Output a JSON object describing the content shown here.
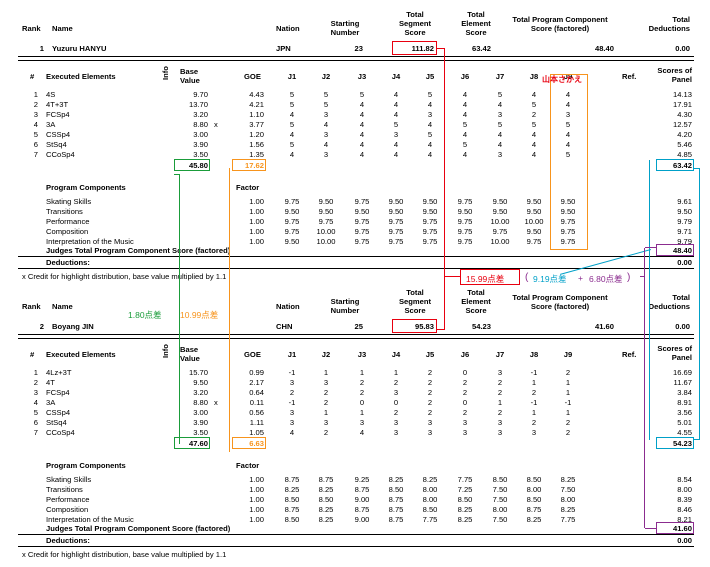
{
  "colors": {
    "red": "#e8000f",
    "green": "#1a9c3a",
    "orange": "#f7941d",
    "cyan": "#00a0c8",
    "purple": "#8b2c8f"
  },
  "headers": {
    "rank": "Rank",
    "name": "Name",
    "nation": "Nation",
    "starting_number": [
      "Starting",
      "Number"
    ],
    "total_segment_score": [
      "Total",
      "Segment",
      "Score"
    ],
    "total_element_score": [
      "Total",
      "Element",
      "Score"
    ],
    "tpcs": [
      "Total Program Component",
      "Score (factored)"
    ],
    "total_deductions": [
      "Total",
      "Deductions"
    ],
    "num": "#",
    "executed_elements": "Executed Elements",
    "info": "Info",
    "base_value": [
      "Base",
      "Value"
    ],
    "goe": "GOE",
    "judges": [
      "J1",
      "J2",
      "J3",
      "J4",
      "J5",
      "J6",
      "J7",
      "J8",
      "J9"
    ],
    "ref": "Ref.",
    "scores_of_panel": [
      "Scores of",
      "Panel"
    ],
    "program_components": "Program Components",
    "factor": "Factor",
    "judges_total": "Judges Total Program Component Score (factored)",
    "deductions": "Deductions:",
    "footnote": "x Credit for highlight distribution, base value multiplied by 1.1"
  },
  "skaters": [
    {
      "rank": "1",
      "name": "Yuzuru HANYU",
      "nation": "JPN",
      "starting_number": "23",
      "tss": "111.82",
      "tes": "63.42",
      "pcs": "48.40",
      "deductions": "0.00",
      "elements": [
        {
          "n": "1",
          "name": "4S",
          "info": "",
          "base": "9.70",
          "goe": "4.43",
          "j": [
            "5",
            "5",
            "5",
            "4",
            "5",
            "4",
            "5",
            "4",
            "4"
          ],
          "panel": "14.13"
        },
        {
          "n": "2",
          "name": "4T+3T",
          "info": "",
          "base": "13.70",
          "goe": "4.21",
          "j": [
            "5",
            "5",
            "4",
            "4",
            "4",
            "4",
            "4",
            "5",
            "4"
          ],
          "panel": "17.91"
        },
        {
          "n": "3",
          "name": "FCSp4",
          "info": "",
          "base": "3.20",
          "goe": "1.10",
          "j": [
            "4",
            "3",
            "4",
            "4",
            "3",
            "4",
            "3",
            "2",
            "3"
          ],
          "panel": "4.30"
        },
        {
          "n": "4",
          "name": "3A",
          "info": "x",
          "base": "8.80",
          "goe": "3.77",
          "j": [
            "5",
            "4",
            "4",
            "5",
            "4",
            "5",
            "5",
            "5",
            "5"
          ],
          "panel": "12.57"
        },
        {
          "n": "5",
          "name": "CSSp4",
          "info": "",
          "base": "3.00",
          "goe": "1.20",
          "j": [
            "4",
            "3",
            "4",
            "3",
            "5",
            "4",
            "4",
            "4",
            "4"
          ],
          "panel": "4.20"
        },
        {
          "n": "6",
          "name": "StSq4",
          "info": "",
          "base": "3.90",
          "goe": "1.56",
          "j": [
            "5",
            "4",
            "4",
            "4",
            "4",
            "5",
            "4",
            "4",
            "4"
          ],
          "panel": "5.46"
        },
        {
          "n": "7",
          "name": "CCoSp4",
          "info": "",
          "base": "3.50",
          "goe": "1.35",
          "j": [
            "4",
            "3",
            "4",
            "4",
            "4",
            "4",
            "3",
            "4",
            "5"
          ],
          "panel": "4.85"
        }
      ],
      "base_total": "45.80",
      "goe_total": "17.62",
      "tes_total": "63.42",
      "components": [
        {
          "name": "Skating Skills",
          "factor": "1.00",
          "j": [
            "9.75",
            "9.50",
            "9.75",
            "9.50",
            "9.50",
            "9.75",
            "9.50",
            "9.50",
            "9.50"
          ],
          "panel": "9.61"
        },
        {
          "name": "Transitions",
          "factor": "1.00",
          "j": [
            "9.50",
            "9.50",
            "9.50",
            "9.50",
            "9.50",
            "9.50",
            "9.50",
            "9.50",
            "9.50"
          ],
          "panel": "9.50"
        },
        {
          "name": "Performance",
          "factor": "1.00",
          "j": [
            "9.75",
            "9.75",
            "9.75",
            "9.75",
            "9.75",
            "9.75",
            "10.00",
            "10.00",
            "9.75"
          ],
          "panel": "9.79"
        },
        {
          "name": "Composition",
          "factor": "1.00",
          "j": [
            "9.75",
            "10.00",
            "9.75",
            "9.75",
            "9.75",
            "9.75",
            "9.75",
            "9.50",
            "9.75"
          ],
          "panel": "9.71"
        },
        {
          "name": "Interpretation of the Music",
          "factor": "1.00",
          "j": [
            "9.50",
            "10.00",
            "9.75",
            "9.75",
            "9.75",
            "9.75",
            "10.00",
            "9.75",
            "9.75"
          ],
          "panel": "9.79"
        }
      ],
      "pcs_total": "48.40",
      "ded_total": "0.00"
    },
    {
      "rank": "2",
      "name": "Boyang JIN",
      "nation": "CHN",
      "starting_number": "25",
      "tss": "95.83",
      "tes": "54.23",
      "pcs": "41.60",
      "deductions": "0.00",
      "elements": [
        {
          "n": "1",
          "name": "4Lz+3T",
          "info": "",
          "base": "15.70",
          "goe": "0.99",
          "j": [
            "-1",
            "1",
            "1",
            "1",
            "2",
            "0",
            "3",
            "-1",
            "2"
          ],
          "panel": "16.69"
        },
        {
          "n": "2",
          "name": "4T",
          "info": "",
          "base": "9.50",
          "goe": "2.17",
          "j": [
            "3",
            "3",
            "2",
            "2",
            "2",
            "2",
            "2",
            "1",
            "1"
          ],
          "panel": "11.67"
        },
        {
          "n": "3",
          "name": "FCSp4",
          "info": "",
          "base": "3.20",
          "goe": "0.64",
          "j": [
            "2",
            "2",
            "2",
            "3",
            "2",
            "2",
            "2",
            "2",
            "1"
          ],
          "panel": "3.84"
        },
        {
          "n": "4",
          "name": "3A",
          "info": "x",
          "base": "8.80",
          "goe": "0.11",
          "j": [
            "-1",
            "2",
            "0",
            "0",
            "2",
            "0",
            "1",
            "-1",
            "-1"
          ],
          "panel": "8.91"
        },
        {
          "n": "5",
          "name": "CSSp4",
          "info": "",
          "base": "3.00",
          "goe": "0.56",
          "j": [
            "3",
            "1",
            "1",
            "2",
            "2",
            "2",
            "2",
            "1",
            "1"
          ],
          "panel": "3.56"
        },
        {
          "n": "6",
          "name": "StSq4",
          "info": "",
          "base": "3.90",
          "goe": "1.11",
          "j": [
            "3",
            "3",
            "3",
            "3",
            "3",
            "3",
            "3",
            "2",
            "2"
          ],
          "panel": "5.01"
        },
        {
          "n": "7",
          "name": "CCoSp4",
          "info": "",
          "base": "3.50",
          "goe": "1.05",
          "j": [
            "4",
            "2",
            "4",
            "3",
            "3",
            "3",
            "3",
            "3",
            "2"
          ],
          "panel": "4.55"
        }
      ],
      "base_total": "47.60",
      "goe_total": "6.63",
      "tes_total": "54.23",
      "components": [
        {
          "name": "Skating Skills",
          "factor": "1.00",
          "j": [
            "8.75",
            "8.75",
            "9.25",
            "8.25",
            "8.25",
            "7.75",
            "8.50",
            "8.50",
            "8.25"
          ],
          "panel": "8.54"
        },
        {
          "name": "Transitions",
          "factor": "1.00",
          "j": [
            "8.25",
            "8.25",
            "8.75",
            "8.50",
            "8.00",
            "7.25",
            "7.50",
            "8.00",
            "7.50"
          ],
          "panel": "8.00"
        },
        {
          "name": "Performance",
          "factor": "1.00",
          "j": [
            "8.50",
            "8.50",
            "9.00",
            "8.75",
            "8.00",
            "8.50",
            "7.50",
            "8.50",
            "8.00"
          ],
          "panel": "8.39"
        },
        {
          "name": "Composition",
          "factor": "1.00",
          "j": [
            "8.75",
            "8.25",
            "8.75",
            "8.75",
            "8.50",
            "8.25",
            "8.00",
            "8.75",
            "8.25"
          ],
          "panel": "8.46"
        },
        {
          "name": "Interpretation of the Music",
          "factor": "1.00",
          "j": [
            "8.50",
            "8.25",
            "9.00",
            "8.75",
            "7.75",
            "8.25",
            "7.50",
            "8.25",
            "7.75"
          ],
          "panel": "8.21"
        }
      ],
      "pcs_total": "41.60",
      "ded_total": "0.00"
    }
  ],
  "annotations": {
    "j9_label": "山本さかえ",
    "diff_total": "15.99点差",
    "diff_pcs": "9.19点差",
    "plus": "+",
    "diff_goe": "6.80点差",
    "paren_open": "(",
    "paren_close": ")",
    "diff_base": "1.80点差",
    "diff_goe2": "10.99点差"
  }
}
